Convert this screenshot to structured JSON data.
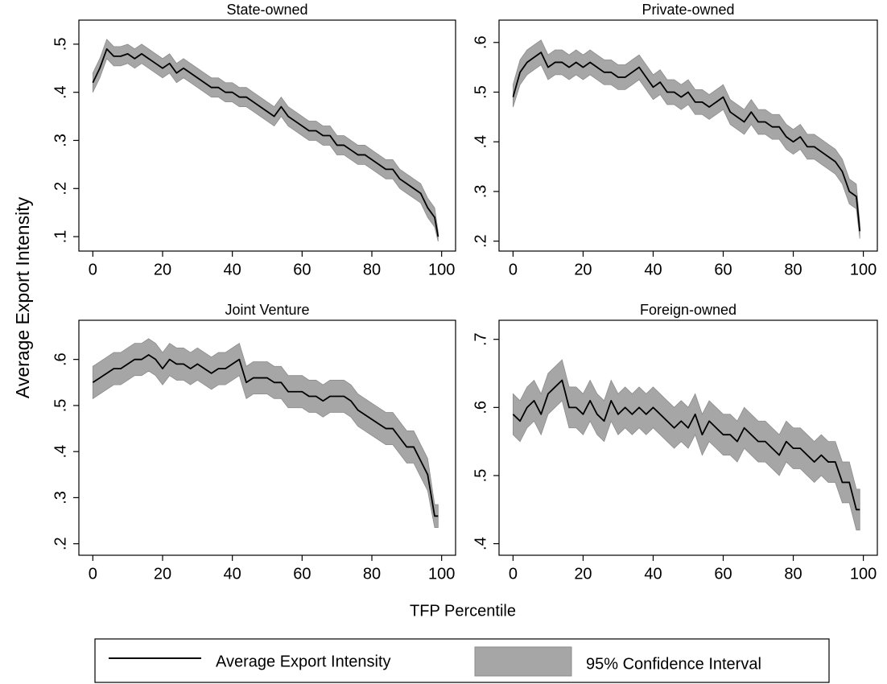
{
  "chart_data": [
    {
      "type": "line",
      "title": "State-owned",
      "x": [
        0,
        2,
        4,
        6,
        8,
        10,
        12,
        14,
        16,
        18,
        20,
        22,
        24,
        26,
        28,
        30,
        32,
        34,
        36,
        38,
        40,
        42,
        44,
        46,
        48,
        50,
        52,
        54,
        56,
        58,
        60,
        62,
        64,
        66,
        68,
        70,
        72,
        74,
        76,
        78,
        80,
        82,
        84,
        86,
        88,
        90,
        92,
        94,
        96,
        98,
        99
      ],
      "series": [
        {
          "name": "Average Export Intensity",
          "color": "#000000",
          "values": [
            0.42,
            0.45,
            0.49,
            0.475,
            0.475,
            0.48,
            0.47,
            0.48,
            0.47,
            0.46,
            0.45,
            0.46,
            0.44,
            0.45,
            0.44,
            0.43,
            0.42,
            0.41,
            0.41,
            0.4,
            0.4,
            0.39,
            0.39,
            0.38,
            0.37,
            0.36,
            0.35,
            0.37,
            0.35,
            0.34,
            0.33,
            0.32,
            0.32,
            0.31,
            0.31,
            0.29,
            0.29,
            0.28,
            0.27,
            0.27,
            0.26,
            0.25,
            0.24,
            0.24,
            0.22,
            0.21,
            0.2,
            0.19,
            0.16,
            0.14,
            0.1
          ]
        }
      ],
      "band": {
        "name": "95% Confidence Interval",
        "color": "#a6a6a6",
        "lower": [
          0.4,
          0.43,
          0.47,
          0.455,
          0.455,
          0.46,
          0.45,
          0.46,
          0.45,
          0.44,
          0.43,
          0.44,
          0.42,
          0.43,
          0.42,
          0.41,
          0.4,
          0.39,
          0.39,
          0.38,
          0.38,
          0.37,
          0.37,
          0.36,
          0.35,
          0.34,
          0.33,
          0.35,
          0.33,
          0.32,
          0.31,
          0.3,
          0.3,
          0.29,
          0.29,
          0.27,
          0.27,
          0.26,
          0.25,
          0.25,
          0.24,
          0.23,
          0.22,
          0.22,
          0.2,
          0.19,
          0.18,
          0.17,
          0.14,
          0.12,
          0.09
        ],
        "upper": [
          0.44,
          0.47,
          0.51,
          0.495,
          0.495,
          0.5,
          0.49,
          0.5,
          0.49,
          0.48,
          0.47,
          0.48,
          0.46,
          0.47,
          0.46,
          0.45,
          0.44,
          0.43,
          0.43,
          0.42,
          0.42,
          0.41,
          0.41,
          0.4,
          0.39,
          0.38,
          0.37,
          0.39,
          0.37,
          0.36,
          0.35,
          0.34,
          0.34,
          0.33,
          0.33,
          0.31,
          0.31,
          0.3,
          0.29,
          0.29,
          0.28,
          0.27,
          0.26,
          0.26,
          0.24,
          0.23,
          0.22,
          0.21,
          0.18,
          0.16,
          0.11
        ]
      },
      "xlim": [
        -4,
        104
      ],
      "xticks": [
        0,
        20,
        40,
        60,
        80,
        100
      ],
      "ylim": [
        0.07,
        0.55
      ],
      "yticks": [
        {
          "value": 0.1,
          "label": ".1"
        },
        {
          "value": 0.2,
          "label": ".2"
        },
        {
          "value": 0.3,
          "label": ".3"
        },
        {
          "value": 0.4,
          "label": ".4"
        },
        {
          "value": 0.5,
          "label": ".5"
        }
      ]
    },
    {
      "type": "line",
      "title": "Private-owned",
      "x": [
        0,
        2,
        4,
        6,
        8,
        10,
        12,
        14,
        16,
        18,
        20,
        22,
        24,
        26,
        28,
        30,
        32,
        34,
        36,
        38,
        40,
        42,
        44,
        46,
        48,
        50,
        52,
        54,
        56,
        58,
        60,
        62,
        64,
        66,
        68,
        70,
        72,
        74,
        76,
        78,
        80,
        82,
        84,
        86,
        88,
        90,
        92,
        94,
        96,
        98,
        99
      ],
      "series": [
        {
          "name": "Average Export Intensity",
          "color": "#000000",
          "values": [
            0.49,
            0.54,
            0.56,
            0.57,
            0.58,
            0.55,
            0.56,
            0.56,
            0.55,
            0.56,
            0.55,
            0.56,
            0.55,
            0.54,
            0.54,
            0.53,
            0.53,
            0.54,
            0.55,
            0.53,
            0.51,
            0.52,
            0.5,
            0.5,
            0.49,
            0.5,
            0.48,
            0.48,
            0.47,
            0.48,
            0.49,
            0.46,
            0.45,
            0.44,
            0.46,
            0.44,
            0.44,
            0.43,
            0.43,
            0.41,
            0.4,
            0.41,
            0.39,
            0.39,
            0.38,
            0.37,
            0.36,
            0.34,
            0.3,
            0.29,
            0.22
          ]
        }
      ],
      "band": {
        "name": "95% Confidence Interval",
        "color": "#a6a6a6",
        "lower": [
          0.47,
          0.515,
          0.535,
          0.545,
          0.555,
          0.525,
          0.535,
          0.535,
          0.525,
          0.535,
          0.525,
          0.535,
          0.525,
          0.515,
          0.515,
          0.505,
          0.505,
          0.515,
          0.525,
          0.505,
          0.485,
          0.495,
          0.475,
          0.475,
          0.465,
          0.475,
          0.455,
          0.455,
          0.445,
          0.455,
          0.465,
          0.435,
          0.425,
          0.415,
          0.435,
          0.415,
          0.415,
          0.405,
          0.405,
          0.385,
          0.375,
          0.385,
          0.365,
          0.365,
          0.355,
          0.345,
          0.335,
          0.315,
          0.275,
          0.265,
          0.205
        ],
        "upper": [
          0.515,
          0.565,
          0.585,
          0.595,
          0.605,
          0.575,
          0.585,
          0.585,
          0.575,
          0.585,
          0.575,
          0.585,
          0.575,
          0.565,
          0.565,
          0.555,
          0.555,
          0.565,
          0.575,
          0.555,
          0.535,
          0.545,
          0.525,
          0.525,
          0.515,
          0.525,
          0.505,
          0.505,
          0.495,
          0.505,
          0.515,
          0.485,
          0.475,
          0.465,
          0.485,
          0.465,
          0.465,
          0.455,
          0.455,
          0.435,
          0.425,
          0.435,
          0.415,
          0.415,
          0.405,
          0.395,
          0.385,
          0.365,
          0.325,
          0.315,
          0.235
        ]
      },
      "xlim": [
        -4,
        104
      ],
      "xticks": [
        0,
        20,
        40,
        60,
        80,
        100
      ],
      "ylim": [
        0.18,
        0.645
      ],
      "yticks": [
        {
          "value": 0.2,
          "label": ".2"
        },
        {
          "value": 0.3,
          "label": ".3"
        },
        {
          "value": 0.4,
          "label": ".4"
        },
        {
          "value": 0.5,
          "label": ".5"
        },
        {
          "value": 0.6,
          "label": ".6"
        }
      ]
    },
    {
      "type": "line",
      "title": "Joint Venture",
      "x": [
        0,
        2,
        4,
        6,
        8,
        10,
        12,
        14,
        16,
        18,
        20,
        22,
        24,
        26,
        28,
        30,
        32,
        34,
        36,
        38,
        40,
        42,
        44,
        46,
        48,
        50,
        52,
        54,
        56,
        58,
        60,
        62,
        64,
        66,
        68,
        70,
        72,
        74,
        76,
        78,
        80,
        82,
        84,
        86,
        88,
        90,
        92,
        94,
        96,
        98,
        99
      ],
      "series": [
        {
          "name": "Average Export Intensity",
          "color": "#000000",
          "values": [
            0.55,
            0.56,
            0.57,
            0.58,
            0.58,
            0.59,
            0.6,
            0.6,
            0.61,
            0.6,
            0.58,
            0.6,
            0.59,
            0.59,
            0.58,
            0.59,
            0.58,
            0.57,
            0.58,
            0.58,
            0.59,
            0.6,
            0.55,
            0.56,
            0.56,
            0.56,
            0.55,
            0.55,
            0.53,
            0.53,
            0.53,
            0.52,
            0.52,
            0.51,
            0.52,
            0.52,
            0.52,
            0.51,
            0.49,
            0.48,
            0.47,
            0.46,
            0.45,
            0.45,
            0.43,
            0.41,
            0.41,
            0.38,
            0.35,
            0.26,
            0.26
          ]
        }
      ],
      "band": {
        "name": "95% Confidence Interval",
        "color": "#a6a6a6",
        "lower": [
          0.515,
          0.525,
          0.535,
          0.545,
          0.545,
          0.555,
          0.565,
          0.565,
          0.575,
          0.565,
          0.545,
          0.565,
          0.555,
          0.555,
          0.545,
          0.555,
          0.545,
          0.535,
          0.545,
          0.545,
          0.555,
          0.565,
          0.515,
          0.525,
          0.525,
          0.525,
          0.515,
          0.515,
          0.495,
          0.495,
          0.495,
          0.485,
          0.485,
          0.475,
          0.485,
          0.485,
          0.485,
          0.475,
          0.455,
          0.445,
          0.435,
          0.425,
          0.415,
          0.415,
          0.395,
          0.375,
          0.375,
          0.345,
          0.315,
          0.235,
          0.235
        ],
        "upper": [
          0.585,
          0.595,
          0.605,
          0.615,
          0.615,
          0.625,
          0.635,
          0.635,
          0.645,
          0.635,
          0.615,
          0.635,
          0.625,
          0.625,
          0.615,
          0.625,
          0.615,
          0.605,
          0.615,
          0.615,
          0.625,
          0.635,
          0.585,
          0.595,
          0.595,
          0.595,
          0.585,
          0.585,
          0.565,
          0.565,
          0.565,
          0.555,
          0.555,
          0.545,
          0.555,
          0.555,
          0.555,
          0.545,
          0.525,
          0.515,
          0.505,
          0.495,
          0.485,
          0.485,
          0.465,
          0.445,
          0.445,
          0.415,
          0.385,
          0.285,
          0.285
        ]
      },
      "xlim": [
        -4,
        104
      ],
      "xticks": [
        0,
        20,
        40,
        60,
        80,
        100
      ],
      "ylim": [
        0.175,
        0.685
      ],
      "yticks": [
        {
          "value": 0.2,
          "label": ".2"
        },
        {
          "value": 0.3,
          "label": ".3"
        },
        {
          "value": 0.4,
          "label": ".4"
        },
        {
          "value": 0.5,
          "label": ".5"
        },
        {
          "value": 0.6,
          "label": ".6"
        }
      ]
    },
    {
      "type": "line",
      "title": "Foreign-owned",
      "x": [
        0,
        2,
        4,
        6,
        8,
        10,
        12,
        14,
        16,
        18,
        20,
        22,
        24,
        26,
        28,
        30,
        32,
        34,
        36,
        38,
        40,
        42,
        44,
        46,
        48,
        50,
        52,
        54,
        56,
        58,
        60,
        62,
        64,
        66,
        68,
        70,
        72,
        74,
        76,
        78,
        80,
        82,
        84,
        86,
        88,
        90,
        92,
        94,
        96,
        98,
        99
      ],
      "series": [
        {
          "name": "Average Export Intensity",
          "color": "#000000",
          "values": [
            0.59,
            0.58,
            0.6,
            0.61,
            0.59,
            0.62,
            0.63,
            0.64,
            0.6,
            0.6,
            0.59,
            0.61,
            0.59,
            0.58,
            0.61,
            0.59,
            0.6,
            0.59,
            0.6,
            0.59,
            0.6,
            0.59,
            0.58,
            0.57,
            0.58,
            0.57,
            0.59,
            0.56,
            0.58,
            0.57,
            0.56,
            0.56,
            0.55,
            0.57,
            0.56,
            0.55,
            0.55,
            0.54,
            0.53,
            0.55,
            0.54,
            0.54,
            0.53,
            0.52,
            0.53,
            0.52,
            0.52,
            0.49,
            0.49,
            0.45,
            0.45
          ]
        }
      ],
      "band": {
        "name": "95% Confidence Interval",
        "color": "#a6a6a6",
        "lower": [
          0.56,
          0.55,
          0.57,
          0.58,
          0.56,
          0.59,
          0.6,
          0.61,
          0.57,
          0.57,
          0.56,
          0.58,
          0.56,
          0.55,
          0.58,
          0.56,
          0.57,
          0.56,
          0.57,
          0.56,
          0.57,
          0.56,
          0.55,
          0.54,
          0.55,
          0.54,
          0.56,
          0.53,
          0.55,
          0.54,
          0.53,
          0.53,
          0.52,
          0.54,
          0.53,
          0.52,
          0.52,
          0.51,
          0.5,
          0.52,
          0.51,
          0.51,
          0.5,
          0.49,
          0.5,
          0.49,
          0.49,
          0.46,
          0.46,
          0.42,
          0.42
        ],
        "upper": [
          0.62,
          0.61,
          0.63,
          0.64,
          0.62,
          0.65,
          0.66,
          0.67,
          0.63,
          0.63,
          0.62,
          0.64,
          0.62,
          0.61,
          0.64,
          0.62,
          0.63,
          0.62,
          0.63,
          0.62,
          0.63,
          0.62,
          0.61,
          0.6,
          0.61,
          0.6,
          0.62,
          0.59,
          0.61,
          0.6,
          0.59,
          0.59,
          0.58,
          0.6,
          0.59,
          0.58,
          0.58,
          0.57,
          0.56,
          0.58,
          0.57,
          0.57,
          0.56,
          0.55,
          0.56,
          0.55,
          0.55,
          0.52,
          0.52,
          0.48,
          0.48
        ]
      },
      "xlim": [
        -4,
        104
      ],
      "xticks": [
        0,
        20,
        40,
        60,
        80,
        100
      ],
      "ylim": [
        0.383,
        0.728
      ],
      "yticks": [
        {
          "value": 0.4,
          "label": ".4"
        },
        {
          "value": 0.5,
          "label": ".5"
        },
        {
          "value": 0.6,
          "label": ".6"
        },
        {
          "value": 0.7,
          "label": ".7"
        }
      ]
    }
  ],
  "ylabel": "Average Export Intensity",
  "xlabel": "TFP Percentile"
}
